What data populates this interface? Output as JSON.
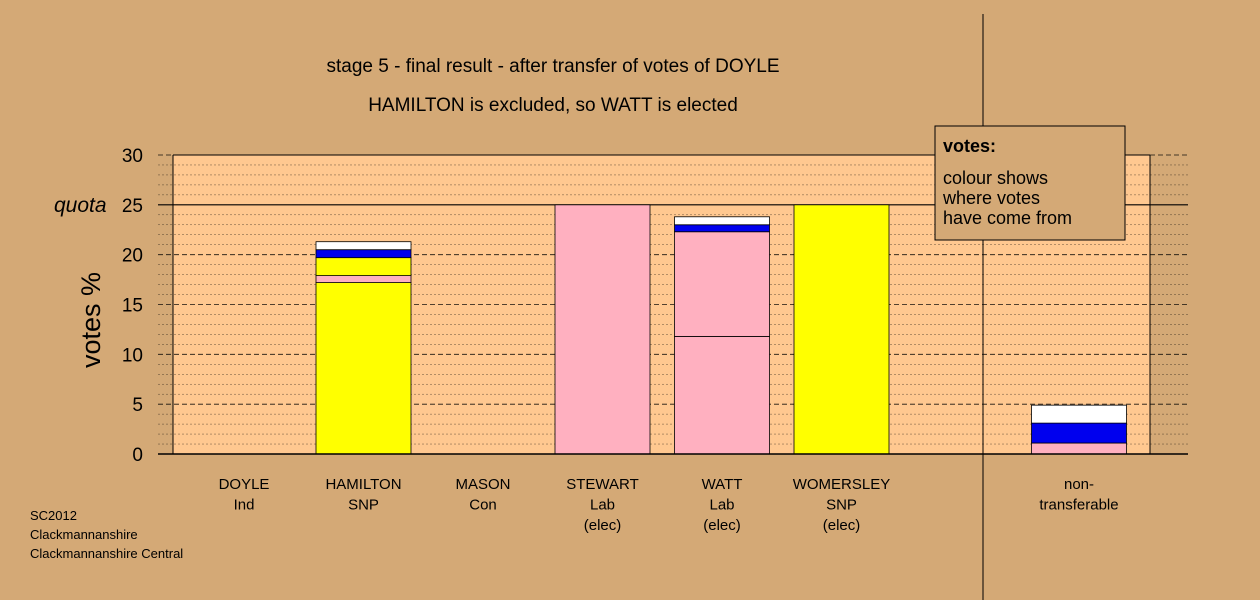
{
  "chart_data": {
    "type": "bar",
    "stacked": true,
    "title": "stage 5 - final result - after transfer of votes of DOYLE",
    "subtitle": "HAMILTON is excluded, so WATT is elected",
    "ylabel": "votes %",
    "ylim": [
      0,
      30
    ],
    "yticks": [
      "0",
      "5",
      "10",
      "15",
      "20",
      "25",
      "30"
    ],
    "quota": {
      "label": "quota",
      "value": 25
    },
    "colors": {
      "snp": "#ffff00",
      "lab": "#ffb0c0",
      "con": "#0000ee",
      "ind": "#ffffff",
      "background": "#d4a976",
      "plot": "#ffc890"
    },
    "categories": [
      {
        "lines": [
          "DOYLE",
          "Ind"
        ],
        "segments": []
      },
      {
        "lines": [
          "HAMILTON",
          "SNP"
        ],
        "segments": [
          {
            "value": 17.2,
            "color": "#ffff00"
          },
          {
            "value": 0.7,
            "color": "#ffb0c0"
          },
          {
            "value": 1.8,
            "color": "#ffff00"
          },
          {
            "value": 0.8,
            "color": "#0000ee"
          },
          {
            "value": 0.8,
            "color": "#ffffff"
          }
        ]
      },
      {
        "lines": [
          "MASON",
          "Con"
        ],
        "segments": []
      },
      {
        "lines": [
          "STEWART",
          "Lab",
          "(elec)"
        ],
        "segments": [
          {
            "value": 25.0,
            "color": "#ffb0c0"
          }
        ]
      },
      {
        "lines": [
          "WATT",
          "Lab",
          "(elec)"
        ],
        "segments": [
          {
            "value": 11.8,
            "color": "#ffb0c0"
          },
          {
            "value": 10.5,
            "color": "#ffb0c0"
          },
          {
            "value": 0.7,
            "color": "#0000ee"
          },
          {
            "value": 0.8,
            "color": "#ffffff"
          }
        ]
      },
      {
        "lines": [
          "WOMERSLEY",
          "SNP",
          "(elec)"
        ],
        "segments": [
          {
            "value": 25.0,
            "color": "#ffff00"
          }
        ]
      },
      {
        "lines": [
          "non-",
          "transferable"
        ],
        "segments": [
          {
            "value": 1.1,
            "color": "#ffb0c0"
          },
          {
            "value": 2.0,
            "color": "#0000ee"
          },
          {
            "value": 1.8,
            "color": "#ffffff"
          }
        ]
      }
    ]
  },
  "legend": {
    "title": "votes:",
    "lines": [
      "colour shows",
      "where votes",
      "have come from"
    ]
  },
  "footer": {
    "lines": [
      "SC2012",
      "Clackmannanshire",
      "Clackmannanshire Central"
    ]
  }
}
